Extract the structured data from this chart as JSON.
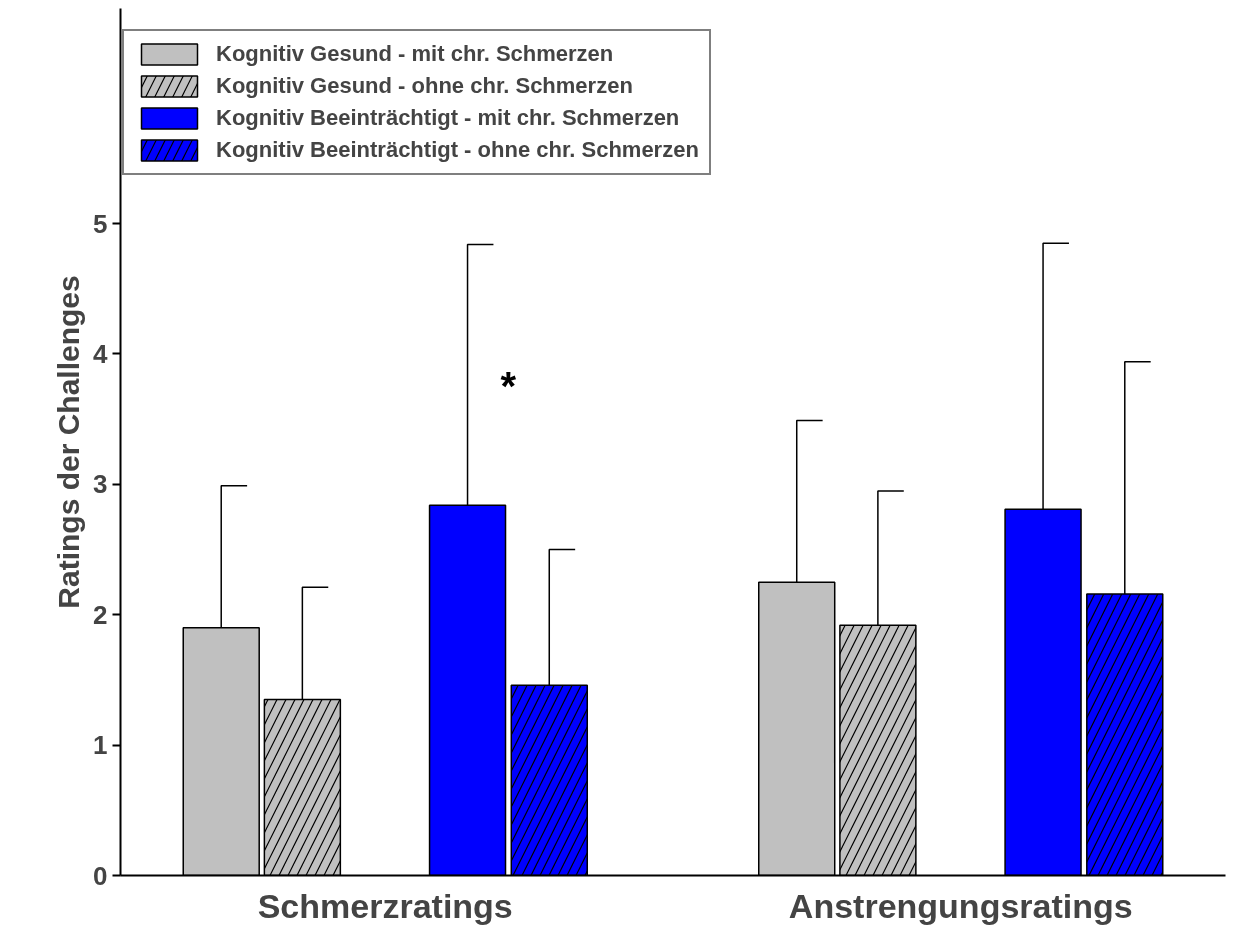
{
  "chart_data": {
    "type": "bar",
    "ylabel": "Ratings der Challenges",
    "categories": [
      "Schmerzratings",
      "Anstrengungsratings"
    ],
    "ylim": [
      0,
      6.65
    ],
    "yticks": [
      0,
      1,
      2,
      3,
      4,
      5
    ],
    "grid": false,
    "legend": "top left",
    "series": [
      {
        "name": "Kognitiv Gesund - mit chr. Schmerzen",
        "color": "#c0c0c0",
        "values": [
          1.9,
          2.25
        ],
        "errors": [
          [
            1.9,
            2.99
          ],
          [
            2.25,
            3.49
          ]
        ]
      },
      {
        "name": "Kognitiv Gesund - ohne chr. Schmerzen",
        "color": "#c0c0c0",
        "values": [
          1.35,
          1.92
        ],
        "errors": [
          [
            1.35,
            2.21
          ],
          [
            1.92,
            2.95
          ]
        ]
      },
      {
        "name": "Kognitiv Beeinträchtigt - mit chr. Schmerzen",
        "color": "#0000ff",
        "values": [
          2.84,
          2.81
        ],
        "errors": [
          [
            2.84,
            4.84
          ],
          [
            2.81,
            4.85
          ]
        ]
      },
      {
        "name": "Kognitiv Beeinträchtigt - ohne chr. Schmerzen",
        "color": "#0000ff",
        "values": [
          1.46,
          2.16
        ],
        "errors": [
          [
            1.46,
            2.5
          ],
          [
            2.16,
            3.94
          ]
        ]
      }
    ],
    "annotations": [
      "*"
    ]
  }
}
